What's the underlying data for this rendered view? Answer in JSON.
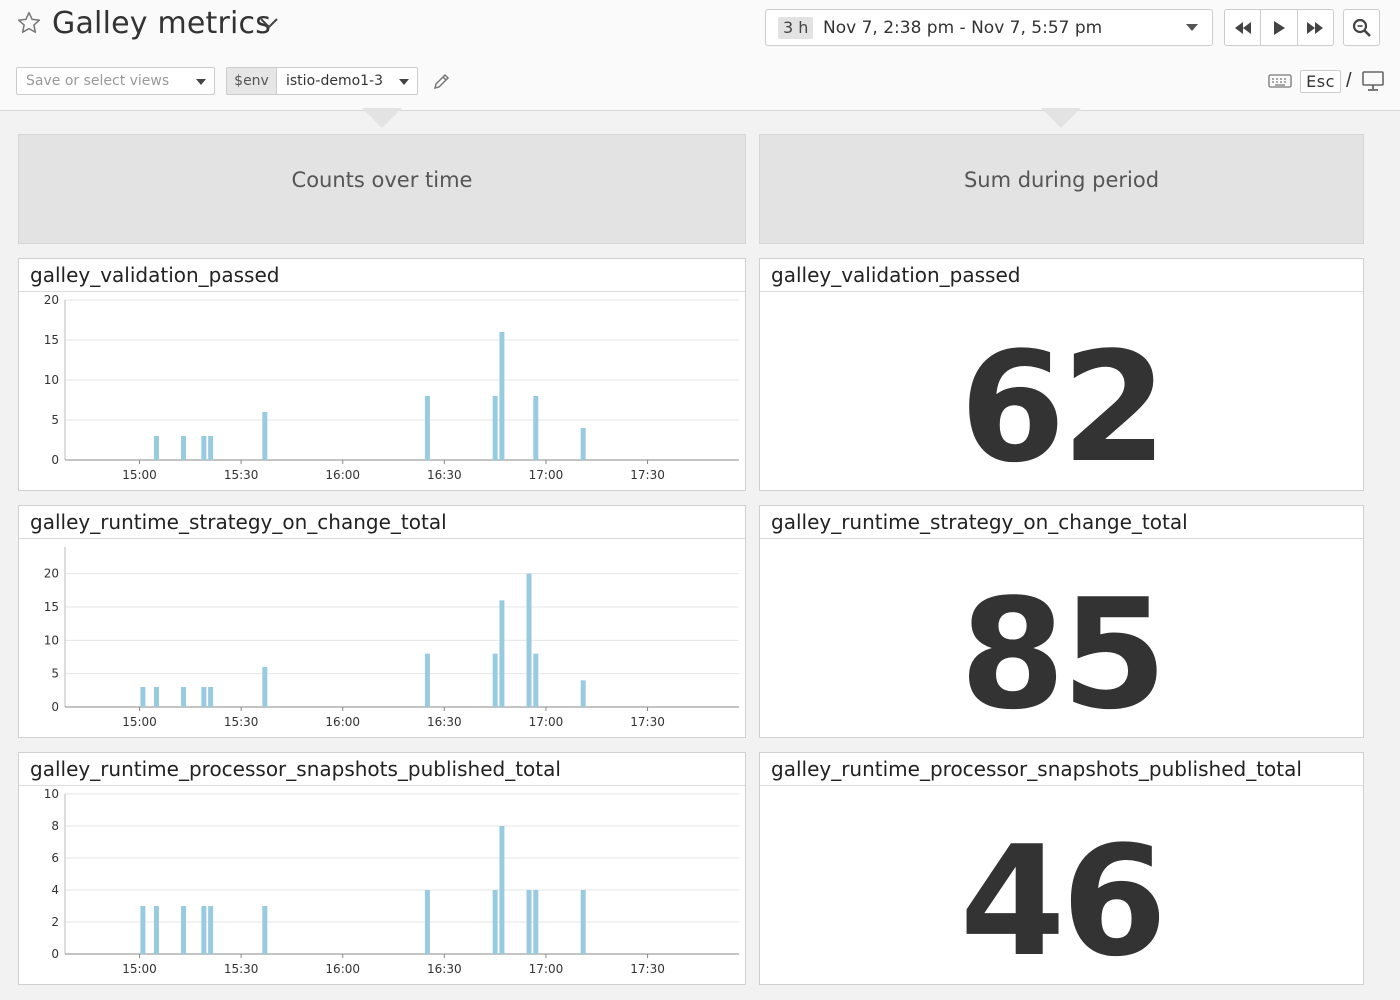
{
  "header": {
    "title": "Galley metrics",
    "time_badge": "3 h",
    "time_range": "Nov 7, 2:38 pm - Nov 7, 5:57 pm",
    "views_placeholder": "Save or select views",
    "env_label": "$env",
    "env_value": "istio-demo1-3",
    "esc_label": "Esc",
    "slash": "/"
  },
  "groups": {
    "left": "Counts over time",
    "right": "Sum during period"
  },
  "widgets": [
    {
      "title": "galley_validation_passed",
      "sum": "62"
    },
    {
      "title": "galley_runtime_strategy_on_change_total",
      "sum": "85"
    },
    {
      "title": "galley_runtime_processor_snapshots_published_total",
      "sum": "46"
    }
  ],
  "colors": {
    "bar": "#99cbe0",
    "grid": "#e6e6e6",
    "axis": "#888888"
  },
  "chart_data": [
    {
      "type": "bar",
      "title": "galley_validation_passed",
      "x_tick_labels": [
        "15:00",
        "15:30",
        "16:00",
        "16:30",
        "17:00",
        "17:30"
      ],
      "y_ticks": [
        0,
        5,
        10,
        15,
        20
      ],
      "ylim": [
        0,
        20
      ],
      "x_unit": "minutes",
      "xlim": [
        "14:38",
        "17:57"
      ],
      "points": [
        {
          "t": "15:05",
          "v": 3
        },
        {
          "t": "15:13",
          "v": 3
        },
        {
          "t": "15:19",
          "v": 3
        },
        {
          "t": "15:21",
          "v": 3
        },
        {
          "t": "15:37",
          "v": 6
        },
        {
          "t": "16:25",
          "v": 8
        },
        {
          "t": "16:45",
          "v": 8
        },
        {
          "t": "16:47",
          "v": 16
        },
        {
          "t": "16:57",
          "v": 8
        },
        {
          "t": "17:11",
          "v": 4
        }
      ]
    },
    {
      "type": "bar",
      "title": "galley_runtime_strategy_on_change_total",
      "x_tick_labels": [
        "15:00",
        "15:30",
        "16:00",
        "16:30",
        "17:00",
        "17:30"
      ],
      "y_ticks": [
        0,
        5,
        10,
        15,
        20
      ],
      "ylim": [
        0,
        24
      ],
      "xlim": [
        "14:38",
        "17:57"
      ],
      "points": [
        {
          "t": "15:01",
          "v": 3
        },
        {
          "t": "15:05",
          "v": 3
        },
        {
          "t": "15:13",
          "v": 3
        },
        {
          "t": "15:19",
          "v": 3
        },
        {
          "t": "15:21",
          "v": 3
        },
        {
          "t": "15:37",
          "v": 6
        },
        {
          "t": "16:25",
          "v": 8
        },
        {
          "t": "16:45",
          "v": 8
        },
        {
          "t": "16:47",
          "v": 16
        },
        {
          "t": "16:55",
          "v": 20
        },
        {
          "t": "16:57",
          "v": 8
        },
        {
          "t": "17:11",
          "v": 4
        }
      ]
    },
    {
      "type": "bar",
      "title": "galley_runtime_processor_snapshots_published_total",
      "x_tick_labels": [
        "15:00",
        "15:30",
        "16:00",
        "16:30",
        "17:00",
        "17:30"
      ],
      "y_ticks": [
        0,
        2,
        4,
        6,
        8,
        10
      ],
      "ylim": [
        0,
        10
      ],
      "xlim": [
        "14:38",
        "17:57"
      ],
      "points": [
        {
          "t": "15:01",
          "v": 3
        },
        {
          "t": "15:05",
          "v": 3
        },
        {
          "t": "15:13",
          "v": 3
        },
        {
          "t": "15:19",
          "v": 3
        },
        {
          "t": "15:21",
          "v": 3
        },
        {
          "t": "15:37",
          "v": 3
        },
        {
          "t": "16:25",
          "v": 4
        },
        {
          "t": "16:45",
          "v": 4
        },
        {
          "t": "16:47",
          "v": 8
        },
        {
          "t": "16:55",
          "v": 4
        },
        {
          "t": "16:57",
          "v": 4
        },
        {
          "t": "17:11",
          "v": 4
        }
      ]
    }
  ]
}
